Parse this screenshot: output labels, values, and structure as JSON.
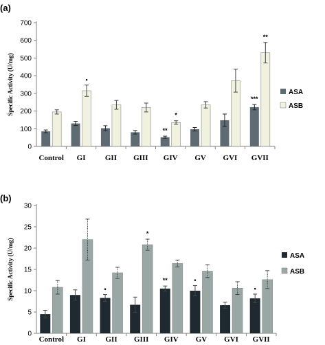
{
  "chart_data": [
    {
      "panel": "(a)",
      "type": "bar",
      "categories": [
        "Control",
        "GI",
        "GII",
        "GIII",
        "GIV",
        "GV",
        "GVI",
        "GVII"
      ],
      "ylabel": "Specific Activity (U/mg)",
      "ylim": [
        0,
        700
      ],
      "yticks": [
        0,
        100,
        200,
        300,
        400,
        500,
        600,
        700
      ],
      "legend_position": "right",
      "grid": false,
      "series": [
        {
          "name": "ASA",
          "color": "#5f6b73",
          "values": [
            85,
            130,
            103,
            80,
            52,
            97,
            148,
            222
          ],
          "errors": [
            8,
            12,
            14,
            10,
            6,
            10,
            35,
            15
          ],
          "annotations": [
            "",
            "",
            "",
            "",
            "**",
            "",
            "",
            "***"
          ]
        },
        {
          "name": "ASB",
          "color": "#f0f1df",
          "values": [
            195,
            315,
            235,
            220,
            135,
            235,
            372,
            530
          ],
          "errors": [
            12,
            32,
            25,
            25,
            10,
            18,
            65,
            58
          ],
          "annotations": [
            "",
            "•",
            "",
            "",
            "*",
            "",
            "",
            "**"
          ]
        }
      ]
    },
    {
      "panel": "(b)",
      "type": "bar",
      "categories": [
        "Control",
        "GI",
        "GII",
        "GIII",
        "GIV",
        "GV",
        "GVI",
        "GVII"
      ],
      "ylabel": "Specific Activity (U/mg)",
      "ylim": [
        0,
        30
      ],
      "yticks": [
        0,
        5,
        10,
        15,
        20,
        25,
        30
      ],
      "legend_position": "right",
      "grid": false,
      "series": [
        {
          "name": "ASA",
          "color": "#1f2a30",
          "values": [
            4.5,
            9.0,
            8.3,
            6.7,
            10.5,
            10.0,
            6.6,
            8.2
          ],
          "errors": [
            0.9,
            1.2,
            0.8,
            1.8,
            0.6,
            1.2,
            0.7,
            1.0
          ],
          "annotations": [
            "",
            "",
            "•",
            "",
            "**",
            "•",
            "",
            "•"
          ]
        },
        {
          "name": "ASB",
          "color": "#9aa8a5",
          "values": [
            10.8,
            22.0,
            14.2,
            20.8,
            16.4,
            14.6,
            10.6,
            12.6
          ],
          "errors": [
            1.6,
            4.8,
            1.3,
            1.3,
            0.8,
            1.5,
            1.5,
            2.1
          ],
          "annotations": [
            "",
            "",
            "",
            "*",
            "",
            "",
            "",
            ""
          ]
        }
      ]
    }
  ]
}
